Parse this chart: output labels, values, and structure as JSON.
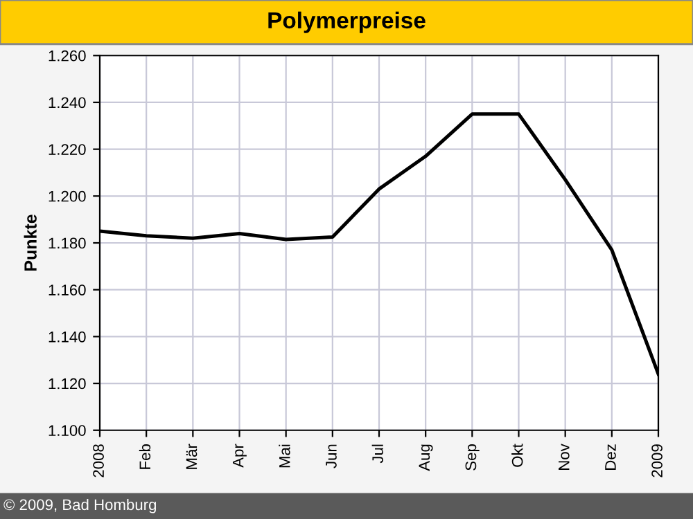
{
  "chart_data": {
    "type": "line",
    "title": "Polymerpreise",
    "ylabel": "Punkte",
    "categories": [
      "2008",
      "Feb",
      "Mär",
      "Apr",
      "Mai",
      "Jun",
      "Jul",
      "Aug",
      "Sep",
      "Okt",
      "Nov",
      "Dez",
      "2009"
    ],
    "series": [
      {
        "color": "#000000",
        "values": [
          1185,
          1183,
          1182,
          1184,
          1181.5,
          1182.5,
          1203,
          1217,
          1235,
          1235,
          1207,
          1177,
          1124
        ]
      }
    ],
    "ylim": [
      1100,
      1260
    ],
    "yticks": [
      {
        "value": 1100,
        "label": "1.100"
      },
      {
        "value": 1120,
        "label": "1.120"
      },
      {
        "value": 1140,
        "label": "1.140"
      },
      {
        "value": 1160,
        "label": "1.160"
      },
      {
        "value": 1180,
        "label": "1.180"
      },
      {
        "value": 1200,
        "label": "1.200"
      },
      {
        "value": 1220,
        "label": "1.220"
      },
      {
        "value": 1240,
        "label": "1.240"
      },
      {
        "value": 1260,
        "label": "1.260"
      }
    ],
    "grid": true,
    "marker": "none",
    "line_style": "solid",
    "annotations": [
      "© 2009, Bad Homburg"
    ]
  }
}
